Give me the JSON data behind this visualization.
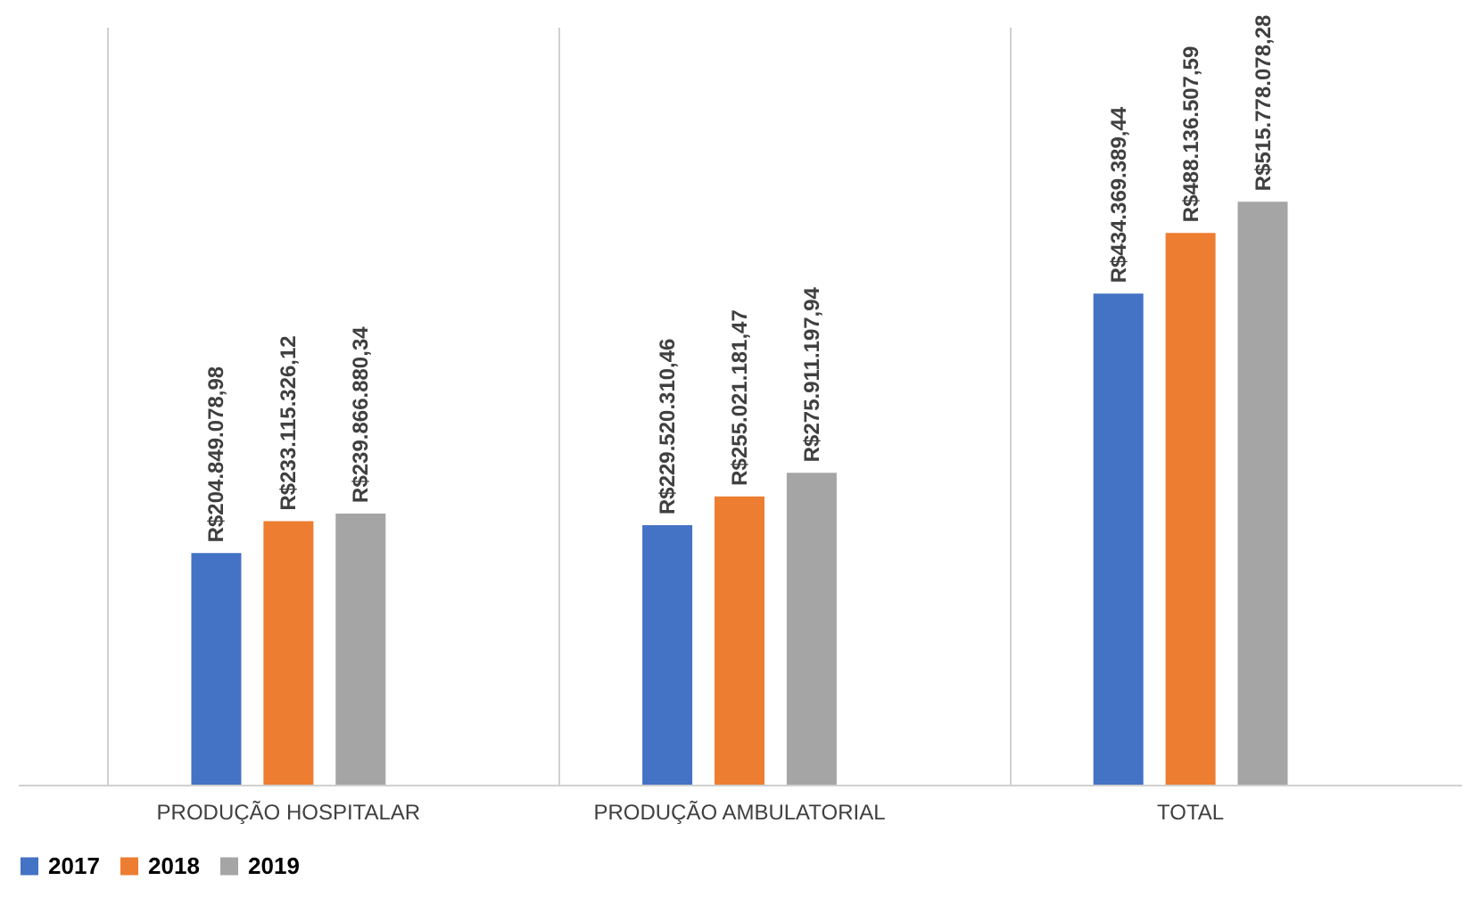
{
  "chart_data": {
    "type": "bar",
    "categories": [
      "PRODUÇÃO HOSPITALAR",
      "PRODUÇÃO AMBULATORIAL",
      "TOTAL"
    ],
    "series": [
      {
        "name": "2017",
        "color": "#4472c4",
        "values": [
          204849078.98,
          229520310.46,
          434369389.44
        ],
        "value_labels": [
          "R$204.849.078,98",
          "R$229.520.310,46",
          "R$434.369.389,44"
        ]
      },
      {
        "name": "2018",
        "color": "#ed7d31",
        "values": [
          233115326.12,
          255021181.47,
          488136507.59
        ],
        "value_labels": [
          "R$233.115.326,12",
          "R$255.021.181,47",
          "R$488.136.507,59"
        ]
      },
      {
        "name": "2019",
        "color": "#a5a5a5",
        "values": [
          239866880.34,
          275911197.94,
          515778078.28
        ],
        "value_labels": [
          "R$239.866.880,34",
          "R$275.911.197,94",
          "R$515.778.078,28"
        ]
      }
    ],
    "grid": "x",
    "legend": "bottom"
  }
}
